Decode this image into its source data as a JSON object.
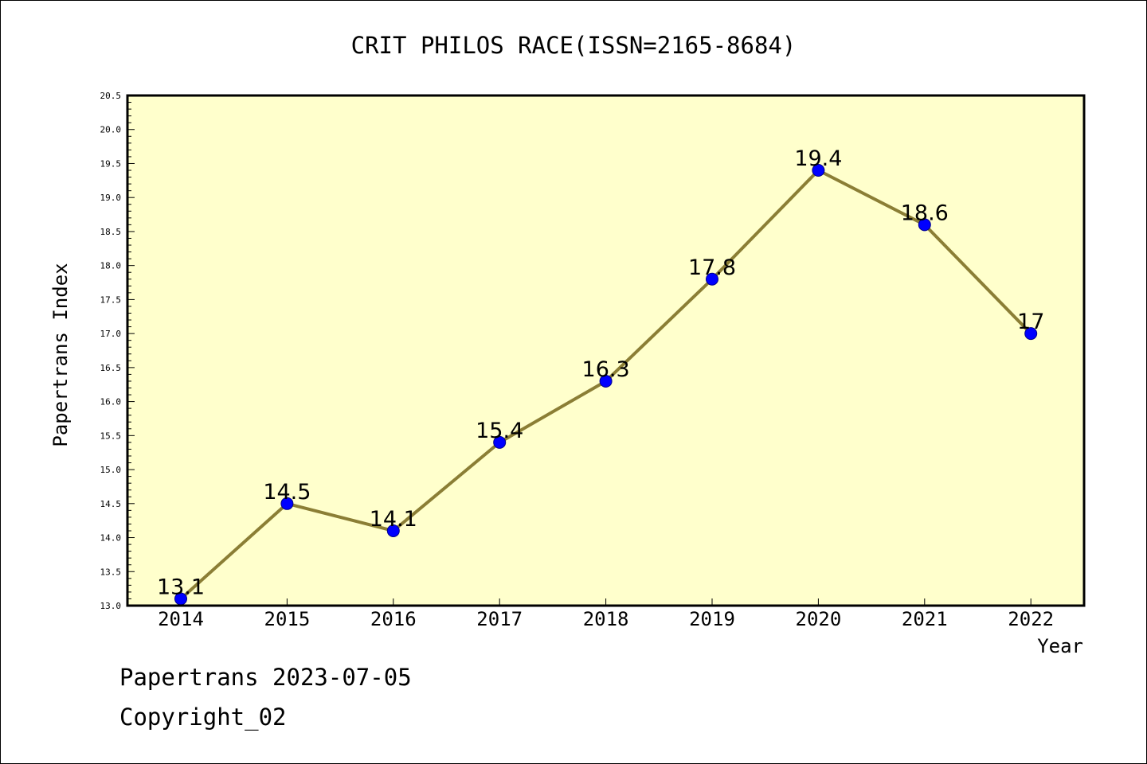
{
  "chart_data": {
    "type": "line",
    "title": "CRIT PHILOS RACE(ISSN=2165-8684)",
    "xlabel": "Year",
    "ylabel": "Papertrans Index",
    "categories": [
      "2014",
      "2015",
      "2016",
      "2017",
      "2018",
      "2019",
      "2020",
      "2021",
      "2022"
    ],
    "values": [
      13.1,
      14.5,
      14.1,
      15.4,
      16.3,
      17.8,
      19.4,
      18.6,
      17
    ],
    "data_labels": [
      "13.1",
      "14.5",
      "14.1",
      "15.4",
      "16.3",
      "17.8",
      "19.4",
      "18.6",
      "17"
    ],
    "ylim": [
      13.0,
      20.5
    ],
    "yticks": [
      "13.0",
      "13.5",
      "14.0",
      "14.5",
      "15.0",
      "15.5",
      "16.0",
      "16.5",
      "17.0",
      "17.5",
      "18.0",
      "18.5",
      "19.0",
      "19.5",
      "20.0",
      "20.5"
    ],
    "grid": false,
    "legend": "none",
    "colors": {
      "plot_background": "#FFFFCC",
      "line": "#8B7E35",
      "marker": "#0000FF",
      "marker_edge": "#00008B"
    }
  },
  "footer": {
    "line1": "Papertrans 2023-07-05",
    "line2": "Copyright_02"
  }
}
